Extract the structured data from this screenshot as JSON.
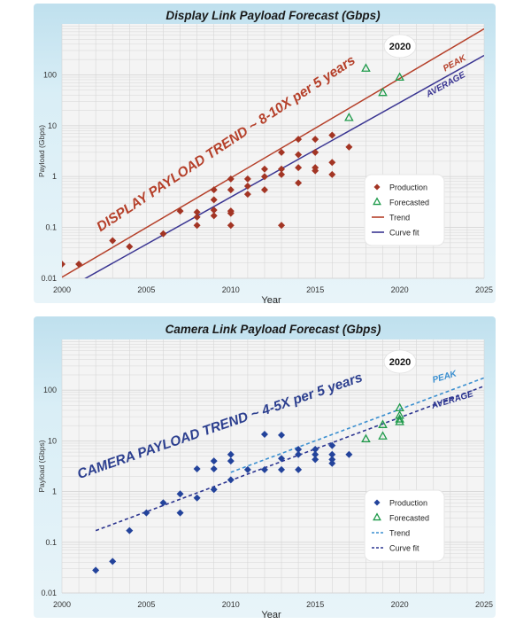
{
  "chart_data": [
    {
      "type": "scatter",
      "title": "Display Link Payload Forecast (Gbps)",
      "xlabel": "Year",
      "ylabel": "Payload (Gbps)",
      "xlim": [
        2000,
        2025
      ],
      "ylim": [
        0.01,
        1000
      ],
      "yscale": "log",
      "x_ticks": [
        "2000",
        "2005",
        "2010",
        "2015",
        "2020",
        "2025"
      ],
      "y_ticks": [
        "0.01",
        "0.1",
        "1",
        "10",
        "100"
      ],
      "grid": true,
      "legend_position": "bottom-right",
      "legend": [
        "Production",
        "Forecasted",
        "Trend",
        "Curve fit"
      ],
      "annotations": {
        "trend_text": "DISPLAY PAYLOAD TREND ~ 8-10X per 5 years",
        "peak_label": "PEAK",
        "average_label": "AVERAGE",
        "year_badge": "2020"
      },
      "colors": {
        "production": "#a33524",
        "forecasted": "#1e9a4a",
        "trend": "#b5402a",
        "curve_fit": "#3a3592",
        "trend_text": "#b5402a"
      },
      "series": [
        {
          "name": "Production",
          "marker": "diamond",
          "points": [
            [
              2000,
              0.019
            ],
            [
              2001,
              0.019
            ],
            [
              2003,
              0.055
            ],
            [
              2004,
              0.042
            ],
            [
              2006,
              0.075
            ],
            [
              2007,
              0.21
            ],
            [
              2008,
              0.2
            ],
            [
              2008,
              0.16
            ],
            [
              2008,
              0.11
            ],
            [
              2009,
              0.55
            ],
            [
              2009,
              0.35
            ],
            [
              2009,
              0.22
            ],
            [
              2009,
              0.17
            ],
            [
              2010,
              0.9
            ],
            [
              2010,
              0.55
            ],
            [
              2010,
              0.21
            ],
            [
              2010,
              0.19
            ],
            [
              2010,
              0.11
            ],
            [
              2011,
              0.9
            ],
            [
              2011,
              0.65
            ],
            [
              2011,
              0.45
            ],
            [
              2012,
              1.4
            ],
            [
              2012,
              1.0
            ],
            [
              2012,
              0.55
            ],
            [
              2013,
              3.0
            ],
            [
              2013,
              1.4
            ],
            [
              2013,
              1.1
            ],
            [
              2013,
              0.11
            ],
            [
              2014,
              5.4
            ],
            [
              2014,
              2.7
            ],
            [
              2014,
              1.5
            ],
            [
              2014,
              0.75
            ],
            [
              2015,
              5.4
            ],
            [
              2015,
              3.0
            ],
            [
              2015,
              1.5
            ],
            [
              2015,
              1.3
            ],
            [
              2016,
              6.5
            ],
            [
              2016,
              1.9
            ],
            [
              2016,
              1.1
            ],
            [
              2017,
              3.8
            ]
          ]
        },
        {
          "name": "Forecasted",
          "marker": "triangle",
          "points": [
            [
              2017,
              14.5
            ],
            [
              2018,
              135
            ],
            [
              2019,
              45
            ],
            [
              2020,
              90
            ]
          ]
        },
        {
          "name": "Trend",
          "line": [
            [
              2000,
              0.0105
            ],
            [
              2025,
              800
            ]
          ]
        },
        {
          "name": "Curve fit",
          "line": [
            [
              2000,
              0.0055
            ],
            [
              2025,
              240
            ]
          ]
        }
      ]
    },
    {
      "type": "scatter",
      "title": "Camera Link Payload Forecast (Gbps)",
      "xlabel": "Year",
      "ylabel": "Payload (Gbps)",
      "xlim": [
        2000,
        2025
      ],
      "ylim": [
        0.01,
        1000
      ],
      "yscale": "log",
      "x_ticks": [
        "2000",
        "2005",
        "2010",
        "2015",
        "2020",
        "2025"
      ],
      "y_ticks": [
        "0.01",
        "0.1",
        "1",
        "10",
        "100"
      ],
      "grid": true,
      "legend_position": "bottom-right",
      "legend": [
        "Production",
        "Forecasted",
        "Trend",
        "Curve fit"
      ],
      "annotations": {
        "trend_text": "CAMERA PAYLOAD TREND ~ 4-5X per 5 years",
        "peak_label": "PEAK",
        "average_label": "AVERAGE",
        "year_badge": "2020"
      },
      "colors": {
        "production": "#23439b",
        "forecasted": "#1e9a4a",
        "trend": "#3a8fd0",
        "curve_fit": "#2c3590",
        "trend_text": "#2c3f8f"
      },
      "series": [
        {
          "name": "Production",
          "marker": "diamond",
          "points": [
            [
              2002,
              0.028
            ],
            [
              2003,
              0.042
            ],
            [
              2004,
              0.17
            ],
            [
              2005,
              0.38
            ],
            [
              2006,
              0.6
            ],
            [
              2007,
              0.9
            ],
            [
              2007,
              0.38
            ],
            [
              2008,
              2.8
            ],
            [
              2008,
              0.75
            ],
            [
              2009,
              4.0
            ],
            [
              2009,
              2.8
            ],
            [
              2009,
              1.1
            ],
            [
              2010,
              5.4
            ],
            [
              2010,
              4.0
            ],
            [
              2010,
              1.7
            ],
            [
              2011,
              2.7
            ],
            [
              2012,
              13.5
            ],
            [
              2012,
              2.7
            ],
            [
              2013,
              13.0
            ],
            [
              2013,
              4.5
            ],
            [
              2013,
              2.7
            ],
            [
              2014,
              6.8
            ],
            [
              2014,
              5.4
            ],
            [
              2014,
              2.7
            ],
            [
              2015,
              6.8
            ],
            [
              2015,
              5.4
            ],
            [
              2015,
              4.3
            ],
            [
              2016,
              8.1
            ],
            [
              2016,
              5.4
            ],
            [
              2016,
              4.3
            ],
            [
              2016,
              3.6
            ],
            [
              2017,
              5.4
            ]
          ]
        },
        {
          "name": "Forecasted",
          "marker": "triangle",
          "points": [
            [
              2018,
              11
            ],
            [
              2019,
              12.5
            ],
            [
              2019,
              21
            ],
            [
              2020,
              45
            ],
            [
              2020,
              32
            ],
            [
              2020,
              27
            ],
            [
              2020,
              24
            ]
          ]
        },
        {
          "name": "Trend",
          "line": [
            [
              2010,
              2.4
            ],
            [
              2025,
              175
            ]
          ]
        },
        {
          "name": "Curve fit",
          "line": [
            [
              2002,
              0.17
            ],
            [
              2025,
              120
            ]
          ]
        }
      ]
    }
  ]
}
